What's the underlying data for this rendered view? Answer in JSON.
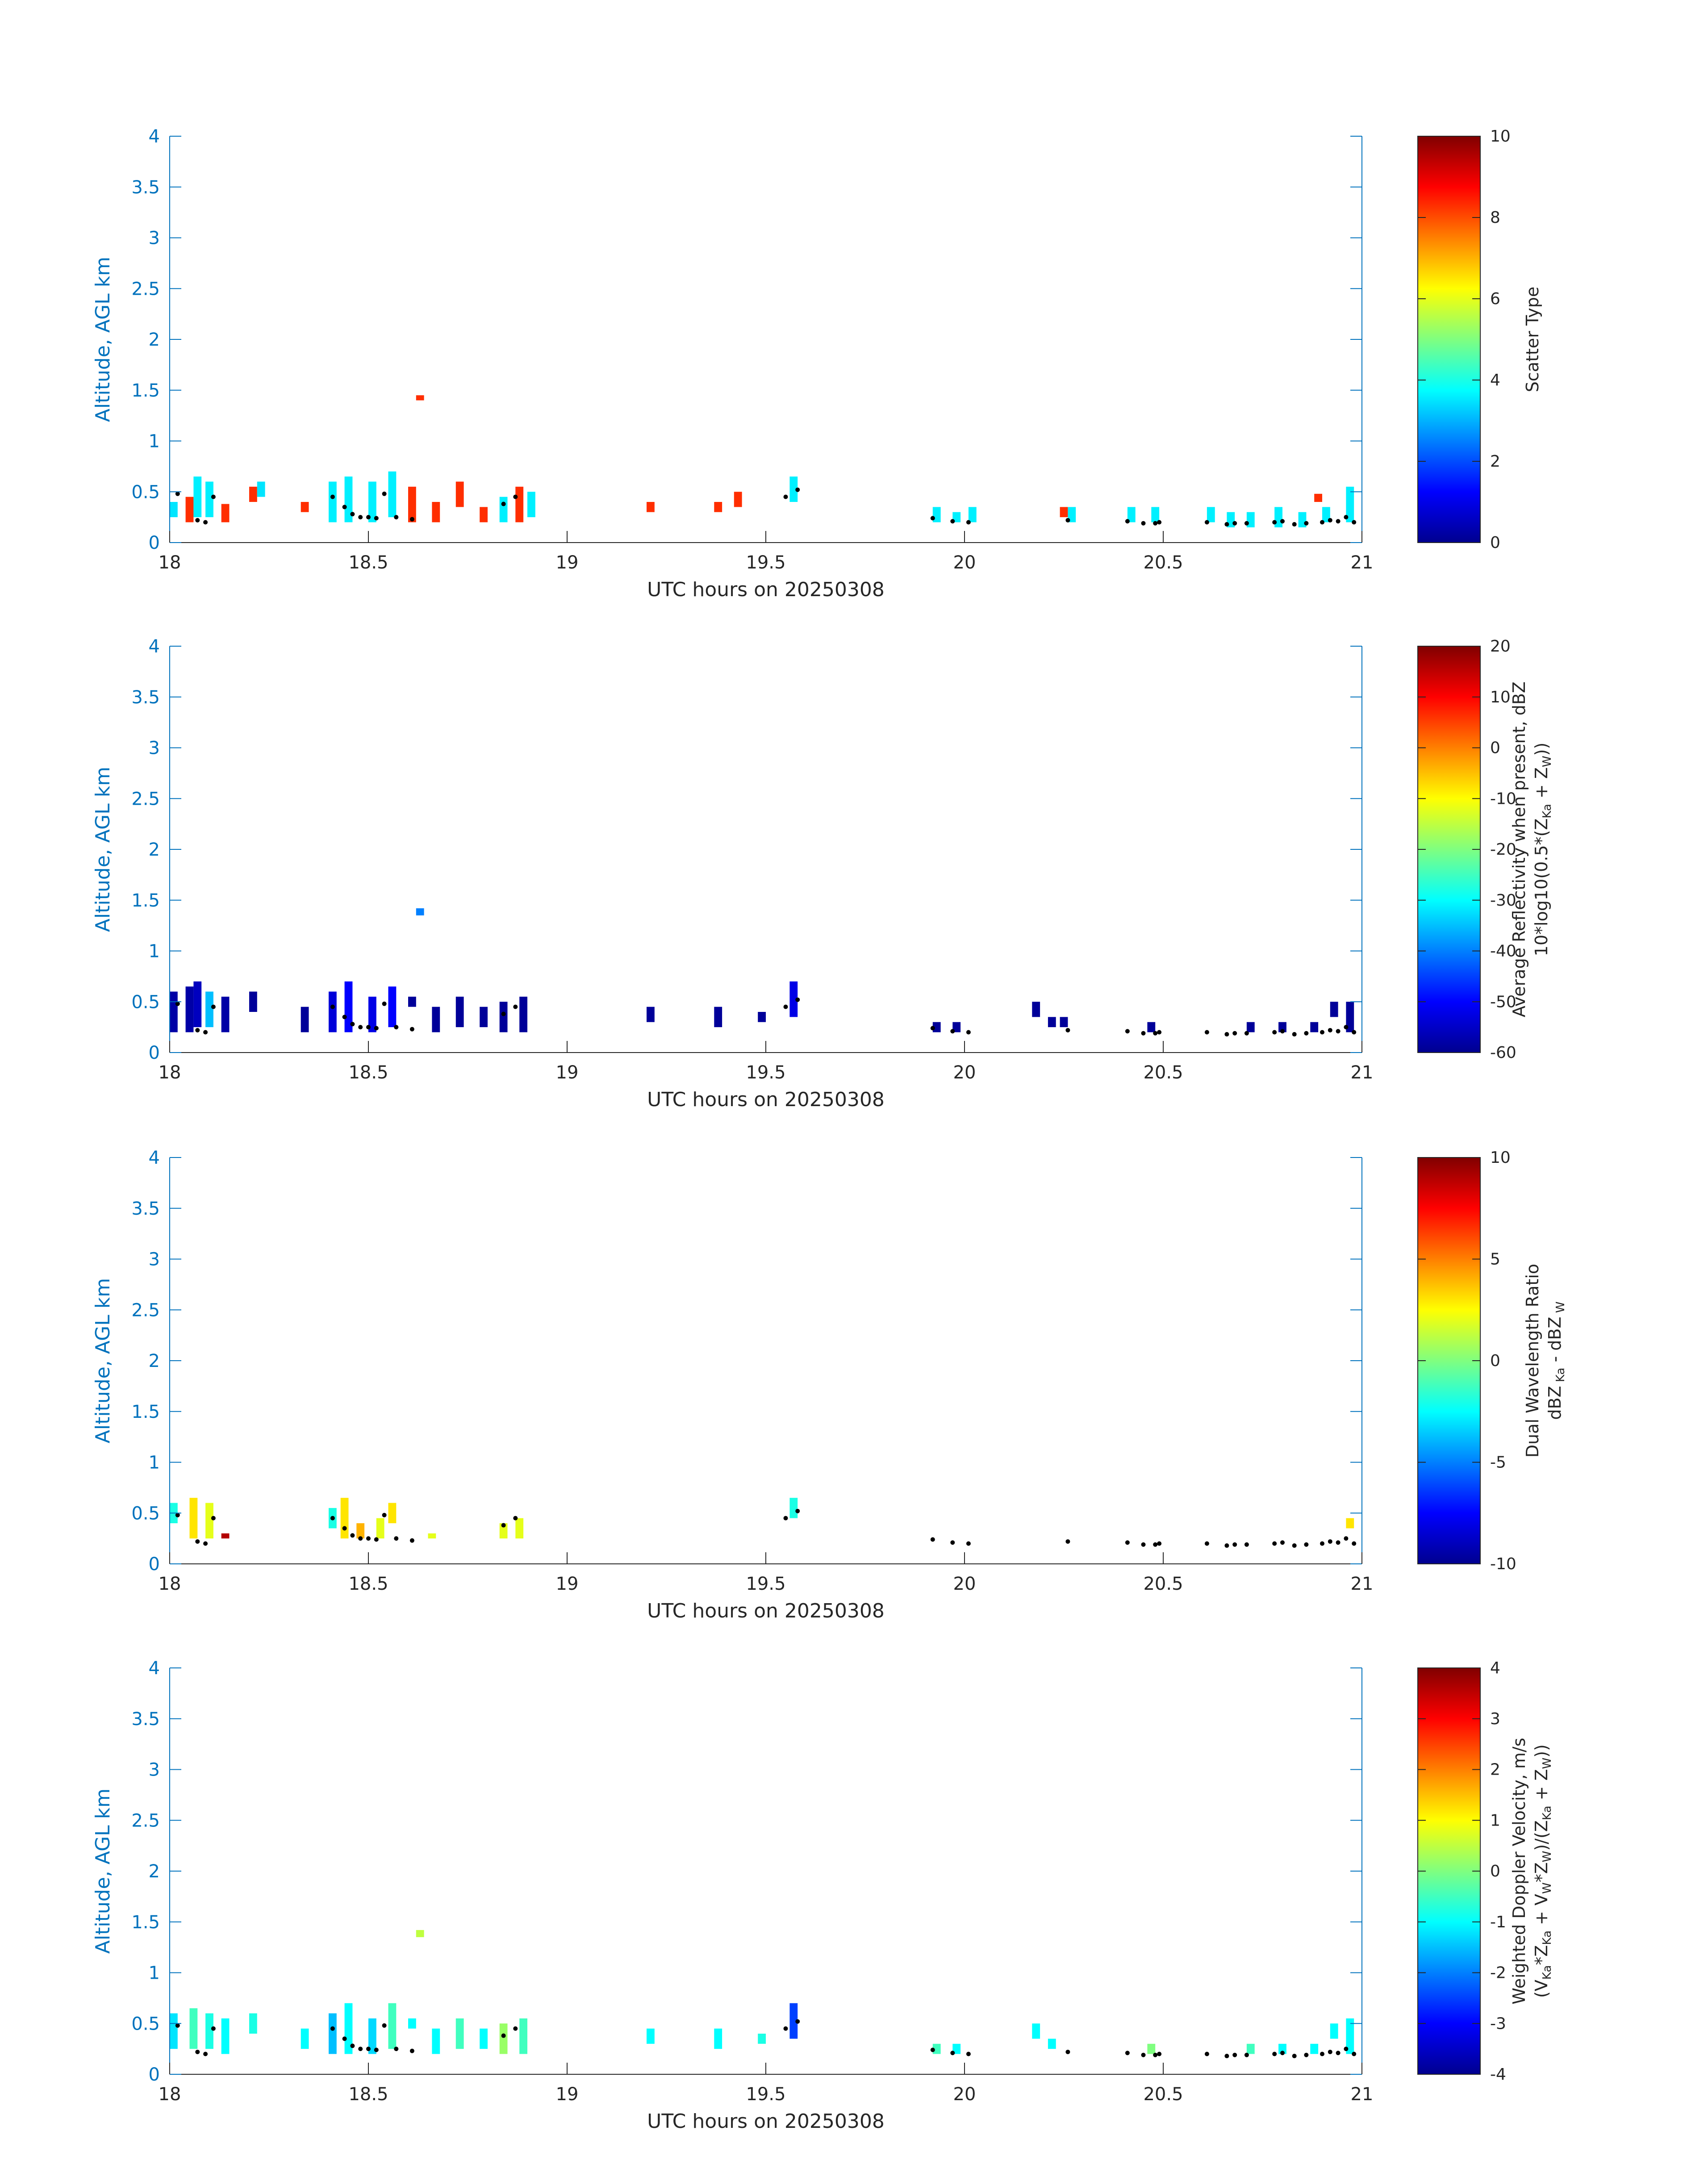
{
  "chart_data": [
    {
      "type": "heatmap",
      "title": "",
      "xlabel": "UTC hours on 20250308",
      "ylabel": "Altitude, AGL km",
      "xlim": [
        18,
        21
      ],
      "ylim": [
        0,
        4
      ],
      "xticks": [
        "18",
        "18.5",
        "19",
        "19.5",
        "20",
        "20.5",
        "21"
      ],
      "yticks": [
        "0",
        "0.5",
        "1",
        "1.5",
        "2",
        "2.5",
        "3",
        "3.5",
        "4"
      ],
      "colorbar": {
        "label": "Scatter Type",
        "label2": "",
        "range": [
          0,
          10
        ],
        "ticks": [
          "0",
          "2",
          "4",
          "6",
          "8",
          "10"
        ]
      },
      "cells": [
        [
          18.0,
          0.25,
          0.4,
          3.5
        ],
        [
          18.04,
          0.2,
          0.45,
          8.3
        ],
        [
          18.06,
          0.25,
          0.65,
          3.6
        ],
        [
          18.09,
          0.25,
          0.6,
          3.6
        ],
        [
          18.13,
          0.2,
          0.38,
          8.3
        ],
        [
          18.2,
          0.4,
          0.55,
          8.3
        ],
        [
          18.22,
          0.45,
          0.6,
          3.5
        ],
        [
          18.33,
          0.3,
          0.4,
          8.3
        ],
        [
          18.4,
          0.2,
          0.6,
          3.6
        ],
        [
          18.44,
          0.2,
          0.65,
          3.6
        ],
        [
          18.5,
          0.2,
          0.6,
          3.6
        ],
        [
          18.55,
          0.25,
          0.7,
          3.6
        ],
        [
          18.6,
          0.2,
          0.55,
          8.3
        ],
        [
          18.62,
          1.4,
          1.45,
          8.3
        ],
        [
          18.66,
          0.2,
          0.4,
          8.3
        ],
        [
          18.72,
          0.35,
          0.6,
          8.3
        ],
        [
          18.78,
          0.2,
          0.35,
          8.3
        ],
        [
          18.83,
          0.2,
          0.45,
          3.6
        ],
        [
          18.87,
          0.2,
          0.55,
          8.3
        ],
        [
          18.9,
          0.25,
          0.5,
          3.6
        ],
        [
          19.2,
          0.3,
          0.4,
          8.3
        ],
        [
          19.37,
          0.3,
          0.4,
          8.3
        ],
        [
          19.42,
          0.35,
          0.5,
          8.3
        ],
        [
          19.56,
          0.4,
          0.65,
          3.6
        ],
        [
          19.92,
          0.2,
          0.35,
          3.6
        ],
        [
          19.97,
          0.2,
          0.3,
          3.6
        ],
        [
          20.01,
          0.2,
          0.35,
          3.6
        ],
        [
          20.24,
          0.25,
          0.35,
          8.3
        ],
        [
          20.26,
          0.2,
          0.35,
          3.6
        ],
        [
          20.41,
          0.2,
          0.35,
          3.6
        ],
        [
          20.47,
          0.2,
          0.35,
          3.6
        ],
        [
          20.61,
          0.2,
          0.35,
          3.6
        ],
        [
          20.66,
          0.15,
          0.3,
          3.6
        ],
        [
          20.71,
          0.15,
          0.3,
          3.6
        ],
        [
          20.78,
          0.15,
          0.35,
          3.6
        ],
        [
          20.84,
          0.15,
          0.3,
          3.6
        ],
        [
          20.88,
          0.4,
          0.48,
          8.3
        ],
        [
          20.9,
          0.2,
          0.35,
          3.6
        ],
        [
          20.96,
          0.2,
          0.55,
          3.6
        ]
      ]
    },
    {
      "type": "heatmap",
      "title": "",
      "xlabel": "UTC hours on 20250308",
      "ylabel": "Altitude, AGL km",
      "xlim": [
        18,
        21
      ],
      "ylim": [
        0,
        4
      ],
      "xticks": [
        "18",
        "18.5",
        "19",
        "19.5",
        "20",
        "20.5",
        "21"
      ],
      "yticks": [
        "0",
        "0.5",
        "1",
        "1.5",
        "2",
        "2.5",
        "3",
        "3.5",
        "4"
      ],
      "colorbar": {
        "label": "Average Reflectivity when present, dBZ",
        "label2": "10*log10(0.5*(Z",
        "range": [
          -60,
          20
        ],
        "ticks": [
          "-60",
          "-50",
          "-40",
          "-30",
          "-20",
          "-10",
          "0",
          "10",
          "20"
        ]
      },
      "cells": [
        [
          18.0,
          0.2,
          0.6,
          -57
        ],
        [
          18.04,
          0.2,
          0.65,
          -57
        ],
        [
          18.06,
          0.25,
          0.7,
          -55
        ],
        [
          18.09,
          0.25,
          0.6,
          -35
        ],
        [
          18.13,
          0.2,
          0.55,
          -57
        ],
        [
          18.2,
          0.4,
          0.6,
          -58
        ],
        [
          18.33,
          0.2,
          0.45,
          -58
        ],
        [
          18.4,
          0.2,
          0.6,
          -53
        ],
        [
          18.44,
          0.2,
          0.7,
          -50
        ],
        [
          18.5,
          0.2,
          0.55,
          -52
        ],
        [
          18.55,
          0.25,
          0.65,
          -50
        ],
        [
          18.6,
          0.45,
          0.55,
          -58
        ],
        [
          18.62,
          1.35,
          1.42,
          -40
        ],
        [
          18.66,
          0.2,
          0.45,
          -58
        ],
        [
          18.72,
          0.25,
          0.55,
          -58
        ],
        [
          18.78,
          0.25,
          0.45,
          -58
        ],
        [
          18.83,
          0.2,
          0.5,
          -58
        ],
        [
          18.88,
          0.2,
          0.55,
          -58
        ],
        [
          19.2,
          0.3,
          0.45,
          -58
        ],
        [
          19.37,
          0.25,
          0.45,
          -58
        ],
        [
          19.48,
          0.3,
          0.4,
          -58
        ],
        [
          19.56,
          0.35,
          0.7,
          -52
        ],
        [
          19.92,
          0.2,
          0.3,
          -58
        ],
        [
          19.97,
          0.2,
          0.3,
          -58
        ],
        [
          20.17,
          0.35,
          0.5,
          -58
        ],
        [
          20.21,
          0.25,
          0.35,
          -58
        ],
        [
          20.24,
          0.25,
          0.35,
          -58
        ],
        [
          20.46,
          0.2,
          0.3,
          -58
        ],
        [
          20.71,
          0.2,
          0.3,
          -58
        ],
        [
          20.79,
          0.2,
          0.3,
          -58
        ],
        [
          20.87,
          0.2,
          0.3,
          -58
        ],
        [
          20.92,
          0.35,
          0.5,
          -58
        ],
        [
          20.96,
          0.2,
          0.5,
          -58
        ]
      ]
    },
    {
      "type": "heatmap",
      "title": "",
      "xlabel": "UTC hours on 20250308",
      "ylabel": "Altitude, AGL km",
      "xlim": [
        18,
        21
      ],
      "ylim": [
        0,
        4
      ],
      "xticks": [
        "18",
        "18.5",
        "19",
        "19.5",
        "20",
        "20.5",
        "21"
      ],
      "yticks": [
        "0",
        "0.5",
        "1",
        "1.5",
        "2",
        "2.5",
        "3",
        "3.5",
        "4"
      ],
      "colorbar": {
        "label": "Dual Wavelength Ratio",
        "label2": "dBZ",
        "range": [
          -10,
          10
        ],
        "ticks": [
          "-10",
          "-5",
          "0",
          "5",
          "10"
        ]
      },
      "cells": [
        [
          18.0,
          0.4,
          0.6,
          -2
        ],
        [
          18.05,
          0.25,
          0.65,
          3
        ],
        [
          18.09,
          0.25,
          0.6,
          2
        ],
        [
          18.13,
          0.25,
          0.3,
          9
        ],
        [
          18.4,
          0.35,
          0.55,
          -2
        ],
        [
          18.43,
          0.25,
          0.65,
          3
        ],
        [
          18.47,
          0.25,
          0.4,
          4
        ],
        [
          18.52,
          0.25,
          0.45,
          2
        ],
        [
          18.55,
          0.4,
          0.6,
          3
        ],
        [
          18.65,
          0.25,
          0.3,
          2
        ],
        [
          18.83,
          0.25,
          0.4,
          2
        ],
        [
          18.87,
          0.25,
          0.45,
          2
        ],
        [
          19.56,
          0.45,
          0.65,
          -2
        ],
        [
          20.96,
          0.35,
          0.45,
          3
        ]
      ]
    },
    {
      "type": "heatmap",
      "title": "",
      "xlabel": "UTC hours on 20250308",
      "ylabel": "Altitude, AGL km",
      "xlim": [
        18,
        21
      ],
      "ylim": [
        0,
        4
      ],
      "xticks": [
        "18",
        "18.5",
        "19",
        "19.5",
        "20",
        "20.5",
        "21"
      ],
      "yticks": [
        "0",
        "0.5",
        "1",
        "1.5",
        "2",
        "2.5",
        "3",
        "3.5",
        "4"
      ],
      "colorbar": {
        "label": "Weighted Doppler Velocity, m/s",
        "label2": "(V",
        "range": [
          -4,
          4
        ],
        "ticks": [
          "-4",
          "-3",
          "-2",
          "-1",
          "0",
          "1",
          "2",
          "3",
          "4"
        ]
      },
      "cells": [
        [
          18.0,
          0.25,
          0.6,
          -1.2
        ],
        [
          18.05,
          0.25,
          0.65,
          -0.5
        ],
        [
          18.09,
          0.25,
          0.6,
          -0.8
        ],
        [
          18.13,
          0.2,
          0.55,
          -1.0
        ],
        [
          18.2,
          0.4,
          0.6,
          -0.8
        ],
        [
          18.33,
          0.25,
          0.45,
          -1.0
        ],
        [
          18.4,
          0.2,
          0.6,
          -1.5
        ],
        [
          18.44,
          0.2,
          0.7,
          -1.0
        ],
        [
          18.5,
          0.2,
          0.55,
          -1.3
        ],
        [
          18.55,
          0.25,
          0.7,
          -0.5
        ],
        [
          18.6,
          0.45,
          0.55,
          -1.0
        ],
        [
          18.62,
          1.35,
          1.42,
          0.5
        ],
        [
          18.66,
          0.2,
          0.45,
          -1.0
        ],
        [
          18.72,
          0.25,
          0.55,
          -0.5
        ],
        [
          18.78,
          0.25,
          0.45,
          -1.0
        ],
        [
          18.83,
          0.2,
          0.5,
          0.2
        ],
        [
          18.88,
          0.2,
          0.55,
          -0.5
        ],
        [
          19.2,
          0.3,
          0.45,
          -1.0
        ],
        [
          19.37,
          0.25,
          0.45,
          -1.0
        ],
        [
          19.48,
          0.3,
          0.4,
          -0.8
        ],
        [
          19.56,
          0.35,
          0.7,
          -2.5
        ],
        [
          19.92,
          0.2,
          0.3,
          -0.5
        ],
        [
          19.97,
          0.2,
          0.3,
          -1.0
        ],
        [
          20.17,
          0.35,
          0.5,
          -1.0
        ],
        [
          20.21,
          0.25,
          0.35,
          -1.0
        ],
        [
          20.46,
          0.2,
          0.3,
          0.0
        ],
        [
          20.71,
          0.2,
          0.3,
          -0.5
        ],
        [
          20.79,
          0.2,
          0.3,
          -1.0
        ],
        [
          20.87,
          0.2,
          0.3,
          -1.0
        ],
        [
          20.92,
          0.35,
          0.5,
          -1.0
        ],
        [
          20.96,
          0.2,
          0.55,
          -1.0
        ]
      ]
    }
  ],
  "cloud_base_points": [
    [
      18.02,
      0.48
    ],
    [
      18.07,
      0.22
    ],
    [
      18.09,
      0.2
    ],
    [
      18.11,
      0.45
    ],
    [
      18.41,
      0.45
    ],
    [
      18.44,
      0.35
    ],
    [
      18.46,
      0.28
    ],
    [
      18.48,
      0.25
    ],
    [
      18.5,
      0.25
    ],
    [
      18.52,
      0.24
    ],
    [
      18.54,
      0.48
    ],
    [
      18.57,
      0.25
    ],
    [
      18.61,
      0.23
    ],
    [
      18.84,
      0.38
    ],
    [
      18.87,
      0.45
    ],
    [
      19.55,
      0.45
    ],
    [
      19.58,
      0.52
    ],
    [
      19.92,
      0.24
    ],
    [
      19.97,
      0.21
    ],
    [
      20.01,
      0.2
    ],
    [
      20.26,
      0.22
    ],
    [
      20.41,
      0.21
    ],
    [
      20.45,
      0.19
    ],
    [
      20.48,
      0.19
    ],
    [
      20.49,
      0.2
    ],
    [
      20.61,
      0.2
    ],
    [
      20.66,
      0.18
    ],
    [
      20.68,
      0.19
    ],
    [
      20.71,
      0.19
    ],
    [
      20.78,
      0.2
    ],
    [
      20.8,
      0.21
    ],
    [
      20.83,
      0.18
    ],
    [
      20.86,
      0.19
    ],
    [
      20.9,
      0.2
    ],
    [
      20.92,
      0.22
    ],
    [
      20.94,
      0.21
    ],
    [
      20.96,
      0.25
    ],
    [
      20.98,
      0.2
    ]
  ]
}
